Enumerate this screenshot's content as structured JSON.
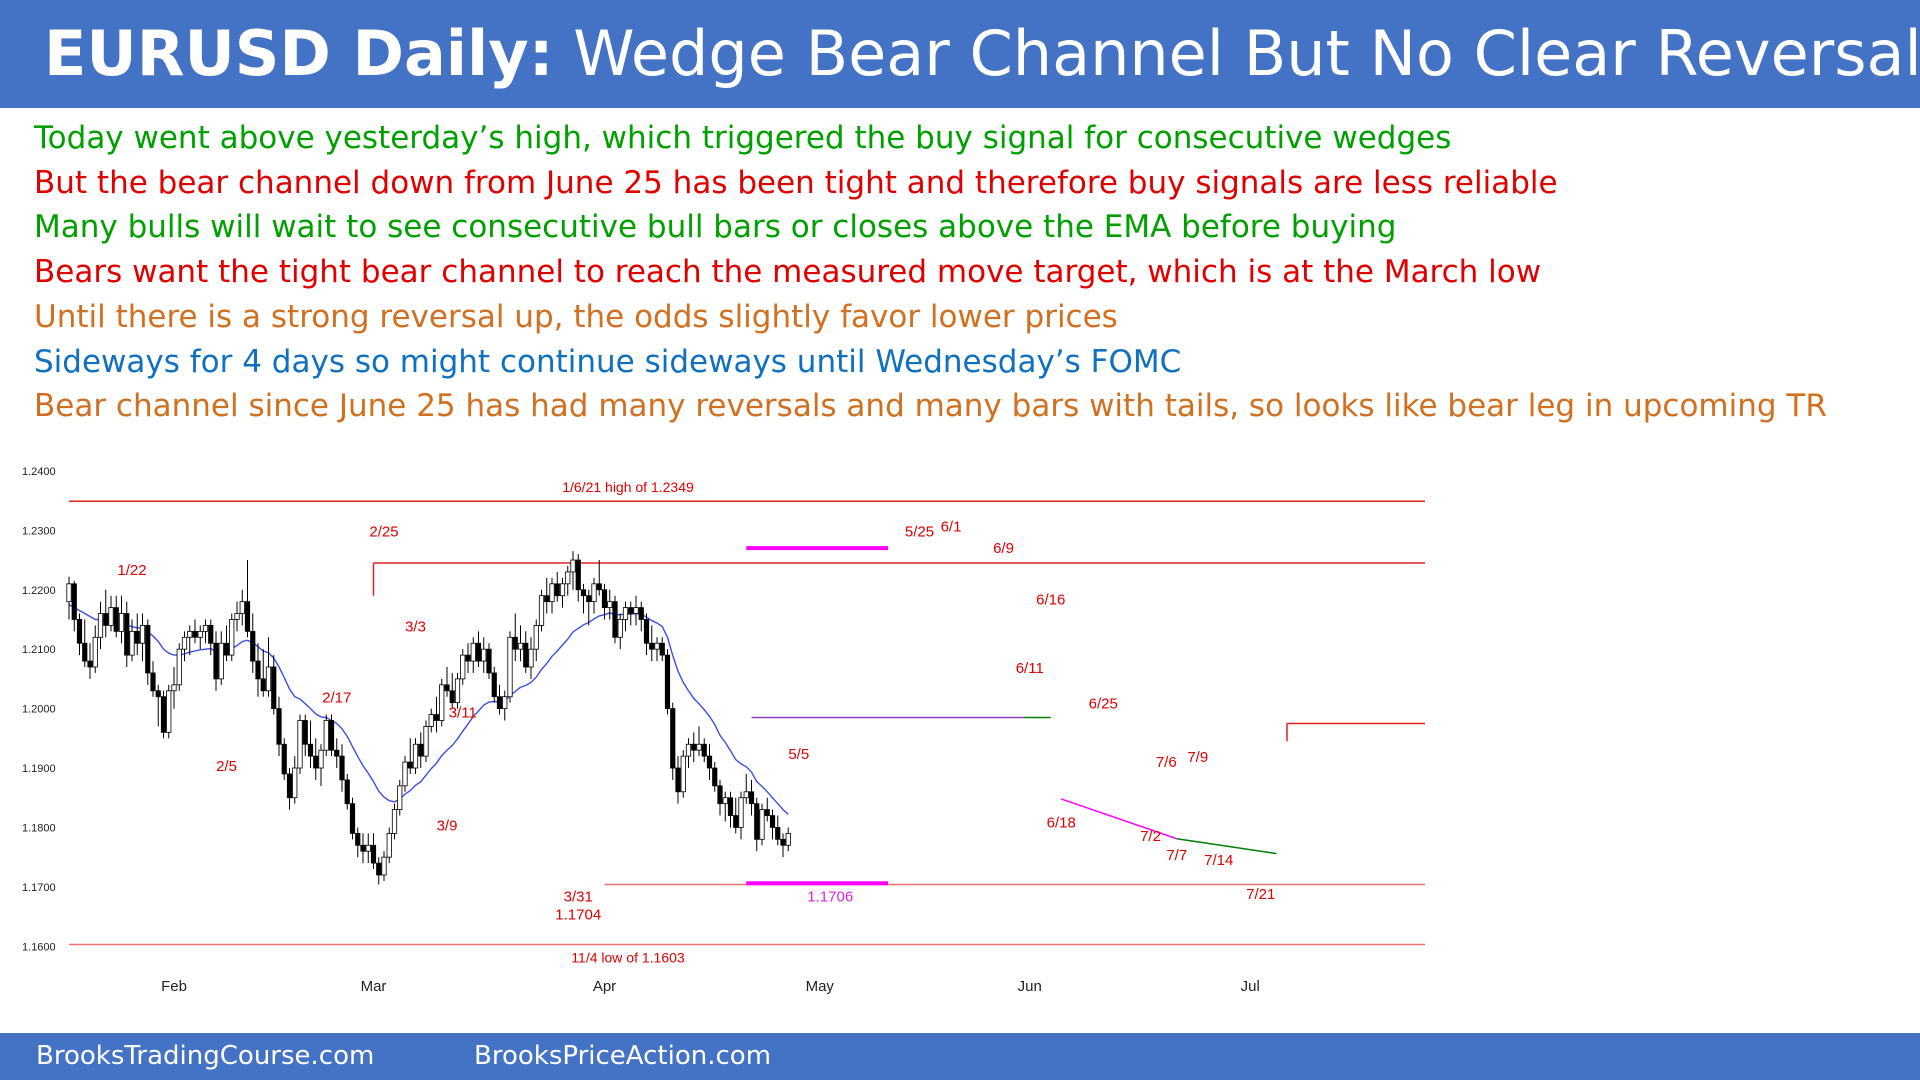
{
  "header": {
    "title_prefix": "EURUSD Daily:",
    "title_rest": "Wedge Bear Channel But No Clear Reversal"
  },
  "bullets": [
    {
      "text": "Today went above yesterday’s high, which triggered the buy signal for consecutive wedges",
      "color": "#00A000"
    },
    {
      "text": "But the bear channel down from June 25 has been tight and therefore buy signals are less reliable",
      "color": "#E00000"
    },
    {
      "text": "Many bulls will wait to see consecutive bull bars or closes above the EMA before buying",
      "color": "#00A000"
    },
    {
      "text": "Bears want the tight bear channel to reach the measured move target, which is at the March low",
      "color": "#E00000"
    },
    {
      "text": "Until there is a strong reversal up, the odds slightly favor lower prices",
      "color": "#D07020"
    },
    {
      "text": "Sideways for 4 days so might continue sideways until Wednesday’s FOMC",
      "color": "#1070C0"
    },
    {
      "text": "Bear channel since June 25 has had many reversals and many bars with tails, so looks like bear leg in upcoming TR",
      "color": "#D07020"
    }
  ],
  "footer": {
    "left": "BrooksTradingCourse.com",
    "right": "BrooksPriceAction.com"
  },
  "chart_data": {
    "type": "candlestick",
    "ylim": [
      1.155,
      1.2415
    ],
    "y_ticks": [
      "1.2400",
      "1.2300",
      "1.2200",
      "1.2100",
      "1.2000",
      "1.1900",
      "1.1800",
      "1.1700",
      "1.1600"
    ],
    "x_ticks": [
      {
        "label": "Feb",
        "bar": 20
      },
      {
        "label": "Mar",
        "bar": 58
      },
      {
        "label": "Apr",
        "bar": 102
      },
      {
        "label": "May",
        "bar": 143
      },
      {
        "label": "Jun",
        "bar": 183
      },
      {
        "label": "Jul",
        "bar": 225
      }
    ],
    "ema_color": "#3B4FE0",
    "up_color": "#ffffff",
    "down_color": "#000000",
    "ohlc": [
      [
        1.218,
        1.2222,
        1.215,
        1.221
      ],
      [
        1.221,
        1.2215,
        1.213,
        1.215
      ],
      [
        1.215,
        1.216,
        1.209,
        1.211
      ],
      [
        1.211,
        1.215,
        1.207,
        1.208
      ],
      [
        1.208,
        1.211,
        1.205,
        1.207
      ],
      [
        1.207,
        1.214,
        1.206,
        1.212
      ],
      [
        1.212,
        1.218,
        1.21,
        1.216
      ],
      [
        1.216,
        1.22,
        1.212,
        1.214
      ],
      [
        1.214,
        1.219,
        1.213,
        1.217
      ],
      [
        1.217,
        1.219,
        1.212,
        1.213
      ],
      [
        1.213,
        1.219,
        1.211,
        1.216
      ],
      [
        1.216,
        1.218,
        1.207,
        1.209
      ],
      [
        1.209,
        1.215,
        1.208,
        1.213
      ],
      [
        1.213,
        1.216,
        1.209,
        1.211
      ],
      [
        1.211,
        1.216,
        1.208,
        1.214
      ],
      [
        1.214,
        1.215,
        1.204,
        1.206
      ],
      [
        1.206,
        1.208,
        1.202,
        1.203
      ],
      [
        1.203,
        1.204,
        1.197,
        1.202
      ],
      [
        1.202,
        1.203,
        1.195,
        1.196
      ],
      [
        1.196,
        1.204,
        1.195,
        1.203
      ],
      [
        1.203,
        1.207,
        1.2,
        1.204
      ],
      [
        1.204,
        1.211,
        1.203,
        1.21
      ],
      [
        1.21,
        1.213,
        1.208,
        1.212
      ],
      [
        1.212,
        1.214,
        1.209,
        1.213
      ],
      [
        1.213,
        1.215,
        1.211,
        1.212
      ],
      [
        1.212,
        1.214,
        1.21,
        1.213
      ],
      [
        1.213,
        1.215,
        1.211,
        1.214
      ],
      [
        1.214,
        1.215,
        1.209,
        1.211
      ],
      [
        1.211,
        1.213,
        1.203,
        1.205
      ],
      [
        1.205,
        1.213,
        1.204,
        1.211
      ],
      [
        1.211,
        1.214,
        1.208,
        1.209
      ],
      [
        1.209,
        1.216,
        1.208,
        1.215
      ],
      [
        1.215,
        1.218,
        1.213,
        1.216
      ],
      [
        1.216,
        1.22,
        1.214,
        1.218
      ],
      [
        1.218,
        1.225,
        1.212,
        1.213
      ],
      [
        1.213,
        1.216,
        1.206,
        1.208
      ],
      [
        1.208,
        1.211,
        1.202,
        1.205
      ],
      [
        1.205,
        1.21,
        1.202,
        1.203
      ],
      [
        1.203,
        1.212,
        1.202,
        1.207
      ],
      [
        1.207,
        1.209,
        1.199,
        1.2
      ],
      [
        1.2,
        1.202,
        1.192,
        1.194
      ],
      [
        1.194,
        1.195,
        1.188,
        1.189
      ],
      [
        1.189,
        1.19,
        1.183,
        1.185
      ],
      [
        1.185,
        1.192,
        1.184,
        1.19
      ],
      [
        1.19,
        1.199,
        1.189,
        1.198
      ],
      [
        1.198,
        1.199,
        1.192,
        1.194
      ],
      [
        1.194,
        1.198,
        1.19,
        1.192
      ],
      [
        1.192,
        1.195,
        1.188,
        1.19
      ],
      [
        1.19,
        1.194,
        1.187,
        1.193
      ],
      [
        1.193,
        1.199,
        1.192,
        1.198
      ],
      [
        1.198,
        1.199,
        1.192,
        1.193
      ],
      [
        1.193,
        1.195,
        1.19,
        1.192
      ],
      [
        1.192,
        1.194,
        1.186,
        1.188
      ],
      [
        1.188,
        1.189,
        1.183,
        1.184
      ],
      [
        1.184,
        1.185,
        1.178,
        1.179
      ],
      [
        1.179,
        1.18,
        1.175,
        1.177
      ],
      [
        1.177,
        1.179,
        1.174,
        1.176
      ],
      [
        1.176,
        1.179,
        1.174,
        1.177
      ],
      [
        1.177,
        1.179,
        1.173,
        1.174
      ],
      [
        1.174,
        1.175,
        1.1704,
        1.172
      ],
      [
        1.172,
        1.176,
        1.171,
        1.175
      ],
      [
        1.175,
        1.18,
        1.174,
        1.179
      ],
      [
        1.179,
        1.184,
        1.178,
        1.183
      ],
      [
        1.183,
        1.188,
        1.182,
        1.187
      ],
      [
        1.187,
        1.192,
        1.186,
        1.191
      ],
      [
        1.191,
        1.195,
        1.189,
        1.19
      ],
      [
        1.19,
        1.195,
        1.189,
        1.194
      ],
      [
        1.194,
        1.196,
        1.19,
        1.192
      ],
      [
        1.192,
        1.198,
        1.191,
        1.197
      ],
      [
        1.197,
        1.2,
        1.196,
        1.199
      ],
      [
        1.199,
        1.202,
        1.196,
        1.198
      ],
      [
        1.198,
        1.205,
        1.197,
        1.204
      ],
      [
        1.204,
        1.207,
        1.202,
        1.203
      ],
      [
        1.203,
        1.206,
        1.2,
        1.201
      ],
      [
        1.201,
        1.206,
        1.2,
        1.205
      ],
      [
        1.205,
        1.21,
        1.204,
        1.209
      ],
      [
        1.209,
        1.211,
        1.206,
        1.208
      ],
      [
        1.208,
        1.212,
        1.206,
        1.211
      ],
      [
        1.211,
        1.213,
        1.207,
        1.208
      ],
      [
        1.208,
        1.212,
        1.206,
        1.21
      ],
      [
        1.21,
        1.211,
        1.205,
        1.206
      ],
      [
        1.206,
        1.207,
        1.201,
        1.202
      ],
      [
        1.202,
        1.204,
        1.199,
        1.2
      ],
      [
        1.2,
        1.203,
        1.198,
        1.202
      ],
      [
        1.202,
        1.213,
        1.201,
        1.212
      ],
      [
        1.212,
        1.216,
        1.208,
        1.21
      ],
      [
        1.21,
        1.214,
        1.208,
        1.211
      ],
      [
        1.211,
        1.213,
        1.206,
        1.207
      ],
      [
        1.207,
        1.212,
        1.205,
        1.21
      ],
      [
        1.21,
        1.215,
        1.208,
        1.214
      ],
      [
        1.214,
        1.22,
        1.213,
        1.219
      ],
      [
        1.219,
        1.222,
        1.216,
        1.218
      ],
      [
        1.218,
        1.222,
        1.216,
        1.221
      ],
      [
        1.221,
        1.223,
        1.218,
        1.219
      ],
      [
        1.219,
        1.222,
        1.217,
        1.221
      ],
      [
        1.221,
        1.224,
        1.219,
        1.223
      ],
      [
        1.223,
        1.2265,
        1.22,
        1.225
      ],
      [
        1.225,
        1.226,
        1.218,
        1.22
      ],
      [
        1.22,
        1.221,
        1.216,
        1.219
      ],
      [
        1.219,
        1.22,
        1.214,
        1.218
      ],
      [
        1.218,
        1.222,
        1.216,
        1.221
      ],
      [
        1.221,
        1.225,
        1.219,
        1.22
      ],
      [
        1.22,
        1.221,
        1.215,
        1.217
      ],
      [
        1.217,
        1.22,
        1.215,
        1.218
      ],
      [
        1.218,
        1.219,
        1.211,
        1.212
      ],
      [
        1.212,
        1.216,
        1.21,
        1.215
      ],
      [
        1.215,
        1.218,
        1.213,
        1.217
      ],
      [
        1.217,
        1.218,
        1.214,
        1.216
      ],
      [
        1.216,
        1.219,
        1.214,
        1.217
      ],
      [
        1.217,
        1.218,
        1.213,
        1.215
      ],
      [
        1.215,
        1.216,
        1.209,
        1.211
      ],
      [
        1.211,
        1.214,
        1.208,
        1.21
      ],
      [
        1.21,
        1.212,
        1.208,
        1.211
      ],
      [
        1.211,
        1.212,
        1.208,
        1.209
      ],
      [
        1.209,
        1.21,
        1.199,
        1.2
      ],
      [
        1.2,
        1.201,
        1.188,
        1.19
      ],
      [
        1.19,
        1.192,
        1.184,
        1.186
      ],
      [
        1.186,
        1.193,
        1.185,
        1.192
      ],
      [
        1.192,
        1.195,
        1.19,
        1.194
      ],
      [
        1.194,
        1.196,
        1.191,
        1.193
      ],
      [
        1.193,
        1.197,
        1.192,
        1.194
      ],
      [
        1.194,
        1.195,
        1.191,
        1.192
      ],
      [
        1.192,
        1.194,
        1.188,
        1.19
      ],
      [
        1.19,
        1.191,
        1.186,
        1.187
      ],
      [
        1.187,
        1.188,
        1.182,
        1.184
      ],
      [
        1.184,
        1.186,
        1.181,
        1.185
      ],
      [
        1.185,
        1.186,
        1.18,
        1.182
      ],
      [
        1.182,
        1.185,
        1.179,
        1.18
      ],
      [
        1.18,
        1.186,
        1.178,
        1.185
      ],
      [
        1.185,
        1.189,
        1.184,
        1.186
      ],
      [
        1.186,
        1.188,
        1.182,
        1.184
      ],
      [
        1.184,
        1.185,
        1.176,
        1.178
      ],
      [
        1.178,
        1.184,
        1.177,
        1.183
      ],
      [
        1.183,
        1.185,
        1.181,
        1.182
      ],
      [
        1.182,
        1.183,
        1.178,
        1.18
      ],
      [
        1.18,
        1.182,
        1.177,
        1.178
      ],
      [
        1.178,
        1.179,
        1.175,
        1.177
      ],
      [
        1.177,
        1.18,
        1.176,
        1.179
      ]
    ],
    "ema": [
      1.2175,
      1.217,
      1.2165,
      1.216,
      1.2155,
      1.215,
      1.215,
      1.2148,
      1.2148,
      1.2146,
      1.2145,
      1.214,
      1.2138,
      1.2136,
      1.2135,
      1.213,
      1.2122,
      1.2113,
      1.21,
      1.2093,
      1.209,
      1.209,
      1.2092,
      1.2095,
      1.2097,
      1.2099,
      1.21,
      1.2101,
      1.2096,
      1.2098,
      1.2097,
      1.2101,
      1.2106,
      1.2113,
      1.2115,
      1.2111,
      1.2104,
      1.2097,
      1.2094,
      1.2085,
      1.207,
      1.2052,
      1.2033,
      1.202,
      1.2016,
      1.2008,
      1.2,
      1.1991,
      1.1986,
      1.1985,
      1.198,
      1.1975,
      1.1966,
      1.1953,
      1.1936,
      1.1919,
      1.1904,
      1.1891,
      1.1877,
      1.1861,
      1.1851,
      1.1845,
      1.1843,
      1.1848,
      1.1856,
      1.1862,
      1.1871,
      1.1877,
      1.1888,
      1.1899,
      1.1908,
      1.1921,
      1.193,
      1.1938,
      1.1949,
      1.1962,
      1.1974,
      1.1987,
      1.1996,
      1.2006,
      1.2011,
      1.2012,
      1.2011,
      1.2012,
      1.2022,
      1.2029,
      1.2036,
      1.2039,
      1.2044,
      1.2053,
      1.2066,
      1.2076,
      1.2088,
      1.2097,
      1.2107,
      1.2117,
      1.2129,
      1.2135,
      1.2141,
      1.2145,
      1.2151,
      1.2156,
      1.2158,
      1.2161,
      1.2158,
      1.2158,
      1.2159,
      1.2159,
      1.216,
      1.2159,
      1.2154,
      1.2148,
      1.2144,
      1.2138,
      1.212,
      1.2089,
      1.2063,
      1.2044,
      1.203,
      1.2017,
      1.2008,
      1.1998,
      1.1987,
      1.1973,
      1.1955,
      1.1943,
      1.1929,
      1.1914,
      1.1907,
      1.1902,
      1.1893,
      1.1877,
      1.1869,
      1.186,
      1.185,
      1.184,
      1.183,
      1.1822
    ],
    "levels": [
      {
        "price": 1.2349,
        "from_bar": 0,
        "to_bar": 270,
        "color": "#E02020",
        "label": "1/6/21 high of 1.2349"
      },
      {
        "price": 1.2245,
        "from_bar": 58,
        "to_bar": 270,
        "color": "#E02020",
        "label": ""
      },
      {
        "price": 1.1975,
        "from_bar": 232,
        "to_bar": 270,
        "color": "#E02020",
        "label": ""
      },
      {
        "price": 1.1704,
        "from_bar": 102,
        "to_bar": 270,
        "color": "#F07070",
        "label": ""
      },
      {
        "price": 1.1603,
        "from_bar": 0,
        "to_bar": 270,
        "color": "#F07070",
        "label": "11/4 low of 1.1603"
      }
    ],
    "annotations": [
      {
        "text": "1/22",
        "bar": 12,
        "price": 1.2225,
        "color": "#E00000"
      },
      {
        "text": "2/5",
        "bar": 30,
        "price": 1.1895,
        "color": "#E00000"
      },
      {
        "text": "2/17",
        "bar": 51,
        "price": 1.201,
        "color": "#E00000"
      },
      {
        "text": "2/25",
        "bar": 60,
        "price": 1.229,
        "color": "#E00000"
      },
      {
        "text": "3/3",
        "bar": 66,
        "price": 1.213,
        "color": "#E00000"
      },
      {
        "text": "3/11",
        "bar": 75,
        "price": 1.1985,
        "color": "#E00000"
      },
      {
        "text": "3/9",
        "bar": 72,
        "price": 1.1795,
        "color": "#E00000"
      },
      {
        "text": "3/31",
        "bar": 97,
        "price": 1.1675,
        "color": "#E00000"
      },
      {
        "text": "1.1704",
        "bar": 97,
        "price": 1.1645,
        "color": "#E00000"
      },
      {
        "text": "1.1706",
        "bar": 145,
        "price": 1.1675,
        "color": "#E020E0"
      },
      {
        "text": "5/5",
        "bar": 139,
        "price": 1.1915,
        "color": "#E00000"
      },
      {
        "text": "5/25",
        "bar": 162,
        "price": 1.229,
        "color": "#E00000"
      },
      {
        "text": "6/1",
        "bar": 168,
        "price": 1.2298,
        "color": "#E00000"
      },
      {
        "text": "6/9",
        "bar": 178,
        "price": 1.2262,
        "color": "#E00000"
      },
      {
        "text": "6/16",
        "bar": 187,
        "price": 1.2175,
        "color": "#E00000"
      },
      {
        "text": "6/11",
        "bar": 183,
        "price": 1.206,
        "color": "#E00000"
      },
      {
        "text": "6/25",
        "bar": 197,
        "price": 1.2,
        "color": "#E00000"
      },
      {
        "text": "6/18",
        "bar": 189,
        "price": 1.18,
        "color": "#E00000"
      },
      {
        "text": "7/6",
        "bar": 209,
        "price": 1.1902,
        "color": "#E00000"
      },
      {
        "text": "7/9",
        "bar": 215,
        "price": 1.191,
        "color": "#E00000"
      },
      {
        "text": "7/2",
        "bar": 206,
        "price": 1.1777,
        "color": "#E00000"
      },
      {
        "text": "7/7",
        "bar": 211,
        "price": 1.1745,
        "color": "#E00000"
      },
      {
        "text": "7/14",
        "bar": 219,
        "price": 1.1737,
        "color": "#E00000"
      },
      {
        "text": "7/21",
        "bar": 227,
        "price": 1.168,
        "color": "#E00000"
      },
      {
        "text": "Feb",
        "bar": 20,
        "price": 1.1525,
        "color": "#222222"
      },
      {
        "text": "Mar",
        "bar": 58,
        "price": 1.1525,
        "color": "#222222"
      },
      {
        "text": "Apr",
        "bar": 102,
        "price": 1.1525,
        "color": "#222222"
      },
      {
        "text": "May",
        "bar": 143,
        "price": 1.1525,
        "color": "#222222"
      },
      {
        "text": "Jun",
        "bar": 183,
        "price": 1.1525,
        "color": "#222222"
      },
      {
        "text": "Jul",
        "bar": 225,
        "price": 1.1525,
        "color": "#222222"
      }
    ],
    "trendlines": [
      {
        "from_bar": 130,
        "from_price": 1.1985,
        "to_bar": 182,
        "to_price": 1.1985,
        "color": "#9040C0"
      },
      {
        "from_bar": 182,
        "from_price": 1.1985,
        "to_bar": 187,
        "to_price": 1.1985,
        "color": "#008000"
      },
      {
        "from_bar": 129,
        "from_price": 1.227,
        "to_bar": 156,
        "to_price": 1.227,
        "color": "#FF00FF"
      },
      {
        "from_bar": 129,
        "from_price": 1.1706,
        "to_bar": 156,
        "to_price": 1.1706,
        "color": "#FF00FF"
      },
      {
        "from_bar": 189,
        "from_price": 1.1848,
        "to_bar": 211,
        "to_price": 1.1781,
        "color": "#FF00FF"
      },
      {
        "from_bar": 211,
        "from_price": 1.1781,
        "to_bar": 230,
        "to_price": 1.1756,
        "color": "#008000"
      }
    ]
  }
}
